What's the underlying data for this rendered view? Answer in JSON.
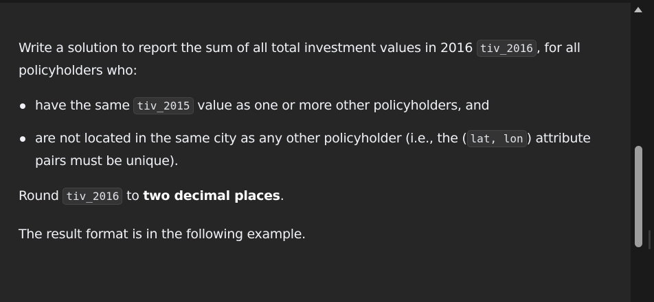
{
  "description": {
    "p1_text_before": "Write a solution to report the sum of all total investment values in 2016 ",
    "p1_code": "tiv_2016",
    "p1_text_after": ", for all policyholders who:",
    "bullet1_text_before": "have the same ",
    "bullet1_code": "tiv_2015",
    "bullet1_text_after": " value as one or more other policyholders, and",
    "bullet2_text_before": "are not located in the same city as any other policyholder (i.e., the (",
    "bullet2_code": "lat, lon",
    "bullet2_text_after": ") attribute pairs must be unique).",
    "p2_text_before": "Round ",
    "p2_code": "tiv_2016",
    "p2_text_middle": " to ",
    "p2_bold": "two decimal places",
    "p2_text_after": ".",
    "p3_text": "The result format is in the following example."
  },
  "scrollbar": {
    "up_icon": "triangle-up"
  }
}
